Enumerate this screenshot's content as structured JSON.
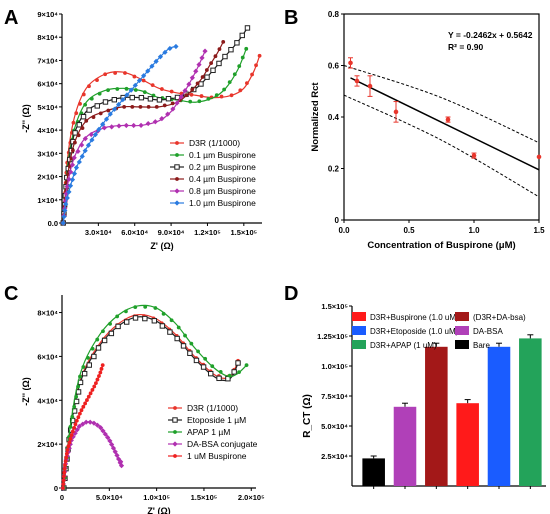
{
  "chart_data": [
    {
      "panel": "A",
      "type": "line",
      "xlabel": "Z' (Ω)",
      "ylabel": "-Z'' (Ω)",
      "xlim": [
        0,
        165000
      ],
      "ylim": [
        0,
        90000
      ],
      "xticks": [
        {
          "v": 30000,
          "label": "3.0×10⁴"
        },
        {
          "v": 60000,
          "label": "6.0×10⁴"
        },
        {
          "v": 90000,
          "label": "9.0×10⁴"
        },
        {
          "v": 120000,
          "label": "1.2×10⁵"
        },
        {
          "v": 150000,
          "label": "1.5×10⁵"
        }
      ],
      "yticks": [
        {
          "v": 0,
          "label": "0.0"
        },
        {
          "v": 10000,
          "label": "1×10⁴"
        },
        {
          "v": 20000,
          "label": "2×10⁴"
        },
        {
          "v": 30000,
          "label": "3×10⁴"
        },
        {
          "v": 40000,
          "label": "4×10⁴"
        },
        {
          "v": 50000,
          "label": "5×10⁴"
        },
        {
          "v": 60000,
          "label": "6×10⁴"
        },
        {
          "v": 70000,
          "label": "7×10⁴"
        },
        {
          "v": 80000,
          "label": "8×10⁴"
        },
        {
          "v": 90000,
          "label": "9×10⁴"
        }
      ],
      "series": [
        {
          "name": "D3R (1/1000)",
          "color": "#e8352b",
          "marker": "dot",
          "x": [
            1000,
            4000,
            10000,
            20000,
            35000,
            50000,
            65000,
            80000,
            95000,
            110000,
            125000,
            140000,
            150000,
            158000,
            163000
          ],
          "y": [
            0,
            25000,
            45000,
            58000,
            64000,
            65000,
            62000,
            58000,
            56000,
            55000,
            54000,
            55000,
            58000,
            65000,
            72000
          ]
        },
        {
          "name": "0.1 µm Buspirone",
          "color": "#1fa02a",
          "marker": "dot",
          "x": [
            1000,
            4000,
            10000,
            20000,
            35000,
            50000,
            65000,
            80000,
            95000,
            110000,
            125000,
            135000,
            145000,
            152000
          ],
          "y": [
            0,
            22000,
            40000,
            52000,
            57000,
            58000,
            57000,
            54000,
            53000,
            52000,
            54000,
            58000,
            66000,
            75000
          ]
        },
        {
          "name": "0.2 µm Buspirone",
          "color": "#222222",
          "marker": "square",
          "x": [
            1000,
            4000,
            10000,
            20000,
            35000,
            50000,
            65000,
            80000,
            95000,
            105000,
            115000,
            125000,
            135000,
            145000,
            153000
          ],
          "y": [
            0,
            20000,
            38000,
            48000,
            52000,
            54000,
            54000,
            53000,
            54000,
            56000,
            60000,
            66000,
            72000,
            78000,
            84000
          ]
        },
        {
          "name": "0.4 µm Buspirone",
          "color": "#8b1a1a",
          "marker": "dot",
          "x": [
            1000,
            4000,
            10000,
            20000,
            35000,
            50000,
            65000,
            80000,
            95000,
            105000,
            115000,
            122000,
            128000,
            133000
          ],
          "y": [
            0,
            18000,
            34000,
            44000,
            48000,
            50000,
            50000,
            50000,
            52000,
            56000,
            62000,
            68000,
            73000,
            78000
          ]
        },
        {
          "name": "0.8 µm Buspirone",
          "color": "#b030b0",
          "marker": "diamond",
          "x": [
            1000,
            4000,
            10000,
            20000,
            35000,
            50000,
            65000,
            80000,
            90000,
            98000,
            105000,
            112000,
            118000
          ],
          "y": [
            0,
            15000,
            28000,
            37000,
            41000,
            42000,
            42000,
            44000,
            48000,
            54000,
            60000,
            67000,
            74000
          ]
        },
        {
          "name": "1.0 µm Buspirone",
          "color": "#2a7be0",
          "marker": "diamond",
          "x": [
            1000,
            3000,
            7000,
            12000,
            20000,
            30000,
            40000,
            50000,
            60000,
            70000,
            80000,
            88000,
            94000
          ],
          "y": [
            0,
            8000,
            16000,
            24000,
            32000,
            40000,
            47000,
            53000,
            59000,
            65000,
            71000,
            75000,
            76000
          ]
        }
      ]
    },
    {
      "panel": "B",
      "type": "scatter",
      "xlabel": "Concentration of Buspirone (μM)",
      "ylabel": "Normalized Rct",
      "xlim": [
        0,
        1.5
      ],
      "ylim": [
        0,
        0.8
      ],
      "xticks": [
        "0.0",
        "0.5",
        "1.0",
        "1.5"
      ],
      "yticks": [
        "0",
        "0.2",
        "0.4",
        "0.6",
        "0.8"
      ],
      "equation": "Y = -0.2462x + 0.5642",
      "r2": "R² = 0.90",
      "fit": {
        "slope": -0.2462,
        "intercept": 0.5642
      },
      "points": [
        {
          "x": 0.05,
          "y": 0.61,
          "err": 0.02
        },
        {
          "x": 0.1,
          "y": 0.54,
          "err": 0.02
        },
        {
          "x": 0.2,
          "y": 0.52,
          "err": 0.04
        },
        {
          "x": 0.4,
          "y": 0.42,
          "err": 0.04
        },
        {
          "x": 0.8,
          "y": 0.39,
          "err": 0.01
        },
        {
          "x": 1.0,
          "y": 0.25,
          "err": 0.01
        },
        {
          "x": 1.5,
          "y": 0.245,
          "err": 0.0
        }
      ],
      "confidence_band": {
        "upper": [
          0.6,
          0.475,
          0.3
        ],
        "lower": [
          0.485,
          0.31,
          0.09
        ],
        "x": [
          0,
          0.75,
          1.5
        ]
      }
    },
    {
      "panel": "C",
      "type": "line",
      "xlabel": "Z' (Ω)",
      "ylabel": "-Z'' (Ω)",
      "xlim": [
        0,
        205000
      ],
      "ylim": [
        0,
        88000
      ],
      "xticks": [
        {
          "v": 0,
          "label": "0"
        },
        {
          "v": 50000,
          "label": "5.0×10⁴"
        },
        {
          "v": 100000,
          "label": "1.0×10⁵"
        },
        {
          "v": 150000,
          "label": "1.5×10⁵"
        },
        {
          "v": 200000,
          "label": "2.0×10⁵"
        }
      ],
      "yticks": [
        {
          "v": 0,
          "label": "0"
        },
        {
          "v": 20000,
          "label": "2×10⁴"
        },
        {
          "v": 40000,
          "label": "4×10⁴"
        },
        {
          "v": 60000,
          "label": "6×10⁴"
        },
        {
          "v": 80000,
          "label": "8×10⁴"
        }
      ],
      "series": [
        {
          "name": "D3R (1/1000)",
          "color": "#e8352b",
          "marker": "dot",
          "x": [
            2000,
            8000,
            20000,
            40000,
            60000,
            80000,
            100000,
            120000,
            140000,
            160000,
            172000,
            180000,
            186000
          ],
          "y": [
            0,
            25000,
            50000,
            66000,
            75000,
            79000,
            77000,
            70000,
            60000,
            52000,
            50000,
            52000,
            58000
          ]
        },
        {
          "name": "Etoposide 1 µM",
          "color": "#222222",
          "marker": "square",
          "x": [
            2000,
            8000,
            20000,
            40000,
            60000,
            80000,
            100000,
            120000,
            140000,
            160000,
            172000,
            180000,
            186000
          ],
          "y": [
            0,
            24000,
            49000,
            65000,
            74000,
            78000,
            76000,
            69000,
            59000,
            51000,
            49000,
            51000,
            57000
          ]
        },
        {
          "name": "APAP 1 µM",
          "color": "#1fa02a",
          "marker": "dot",
          "x": [
            2000,
            8000,
            20000,
            40000,
            60000,
            80000,
            100000,
            120000,
            140000,
            160000,
            175000,
            185000,
            195000
          ],
          "y": [
            0,
            26000,
            53000,
            70000,
            79000,
            83000,
            82000,
            75000,
            64000,
            55000,
            51000,
            52000,
            56000
          ]
        },
        {
          "name": "DA-BSA conjugate",
          "color": "#b030b0",
          "marker": "diamond",
          "x": [
            1000,
            4000,
            10000,
            18000,
            25000,
            32000,
            40000,
            50000,
            58000,
            62000,
            63000,
            62000
          ],
          "y": [
            0,
            12000,
            22000,
            28000,
            30000,
            30000,
            28000,
            22000,
            15000,
            11000,
            10000,
            12000
          ]
        },
        {
          "name": "1 uM Buspirone",
          "color": "#ee2020",
          "marker": "dot",
          "x": [
            1000,
            3000,
            6000,
            10000,
            15000,
            20000,
            25000,
            30000,
            35000,
            40000,
            43000
          ],
          "y": [
            0,
            10000,
            18000,
            24000,
            30000,
            35000,
            39000,
            43000,
            47000,
            52000,
            56000
          ]
        }
      ]
    },
    {
      "panel": "D",
      "type": "bar",
      "ylabel": "R_CT (Ω)",
      "ylim": [
        0,
        150000
      ],
      "yticks": [
        {
          "v": 25000,
          "label": "2.5×10⁴"
        },
        {
          "v": 50000,
          "label": "5.0×10⁴"
        },
        {
          "v": 75000,
          "label": "7.5×10⁴"
        },
        {
          "v": 100000,
          "label": "1.0×10⁵"
        },
        {
          "v": 125000,
          "label": "1.25×10⁵"
        },
        {
          "v": 150000,
          "label": "1.5×10⁵"
        }
      ],
      "legend": [
        {
          "name": "D3R+Buspirone (1.0 uM)",
          "color": "#ff1a1a"
        },
        {
          "name": "(D3R+DA-bsa)",
          "color": "#a31818"
        },
        {
          "name": "D3R+Etoposide (1.0 uM)",
          "color": "#1a5cff"
        },
        {
          "name": "DA-BSA",
          "color": "#b040b8"
        },
        {
          "name": "D3R+APAP (1 uM)",
          "color": "#23a35a"
        },
        {
          "name": "Bare",
          "color": "#000000"
        }
      ],
      "bars": [
        {
          "name": "Bare",
          "value": 23000,
          "err": 2000,
          "color": "#000000"
        },
        {
          "name": "DA-BSA",
          "value": 66000,
          "err": 3000,
          "color": "#b040b8"
        },
        {
          "name": "(D3R+DA-bsa)",
          "value": 116000,
          "err": 3000,
          "color": "#a31818"
        },
        {
          "name": "D3R+Buspirone (1.0 uM)",
          "value": 69000,
          "err": 3000,
          "color": "#ff1a1a"
        },
        {
          "name": "D3R+Etoposide (1.0 uM)",
          "value": 116000,
          "err": 3000,
          "color": "#1a5cff"
        },
        {
          "name": "D3R+APAP (1 uM)",
          "value": 123000,
          "err": 3000,
          "color": "#23a35a"
        }
      ]
    }
  ]
}
